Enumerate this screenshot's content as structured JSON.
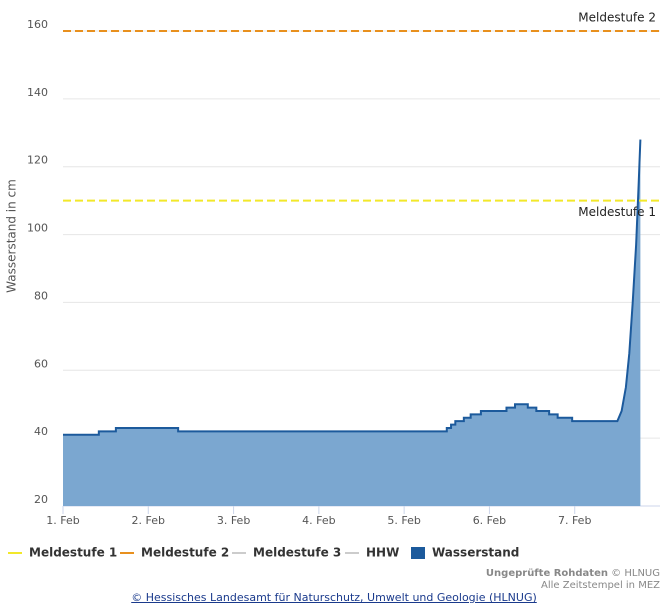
{
  "chart_data": {
    "type": "area",
    "y_label": "Wasserstand in cm",
    "ylim": [
      20,
      160
    ],
    "yticks": [
      20,
      40,
      60,
      80,
      100,
      120,
      140,
      160
    ],
    "xlim": [
      0,
      7
    ],
    "xticks": [
      {
        "value": 0,
        "label": "1. Feb"
      },
      {
        "value": 1,
        "label": "2. Feb"
      },
      {
        "value": 2,
        "label": "3. Feb"
      },
      {
        "value": 3,
        "label": "4. Feb"
      },
      {
        "value": 4,
        "label": "5. Feb"
      },
      {
        "value": 5,
        "label": "6. Feb"
      },
      {
        "value": 6,
        "label": "7. Feb"
      }
    ],
    "grid": true,
    "series": [
      {
        "name": "Meldestufe 1",
        "color": "#f2e82a",
        "kind": "threshold",
        "value": 110
      },
      {
        "name": "Meldestufe 2",
        "color": "#e8901e",
        "kind": "threshold",
        "value": 160
      },
      {
        "name": "Meldestufe 3",
        "color": "#cccccc",
        "visible": false
      },
      {
        "name": "HHW",
        "color": "#cccccc",
        "visible": false
      },
      {
        "name": "Wasserstand",
        "color": "#1c5a9c",
        "fill": "#7ba7d0",
        "kind": "area",
        "x": [
          0,
          0.42,
          0.42,
          0.62,
          0.62,
          1.35,
          1.35,
          4.5,
          4.5,
          4.55,
          4.55,
          4.6,
          4.6,
          4.7,
          4.7,
          4.78,
          4.78,
          4.9,
          4.9,
          5.2,
          5.2,
          5.3,
          5.3,
          5.45,
          5.45,
          5.55,
          5.55,
          5.7,
          5.7,
          5.8,
          5.8,
          5.97,
          5.97,
          6.5,
          6.55,
          6.6,
          6.64,
          6.68,
          6.72,
          6.75,
          6.77
        ],
        "values": [
          41,
          41,
          42,
          42,
          43,
          43,
          42,
          42,
          43,
          43,
          44,
          44,
          45,
          45,
          46,
          46,
          47,
          47,
          48,
          48,
          49,
          49,
          50,
          50,
          49,
          49,
          48,
          48,
          47,
          47,
          46,
          46,
          45,
          45,
          48,
          55,
          65,
          80,
          97,
          115,
          128
        ]
      }
    ],
    "credits": {
      "bold": "Ungeprüfte Rohdaten",
      "rest": "© HLNUG",
      "line2": "Alle Zeitstempel in MEZ"
    }
  },
  "footer": {
    "link": "© Hessisches Landesamt für Naturschutz, Umwelt und Geologie (HLNUG)"
  }
}
